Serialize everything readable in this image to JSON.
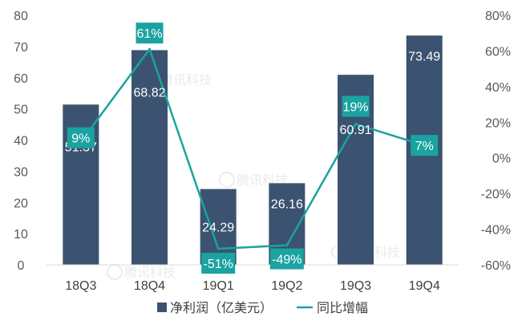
{
  "chart_data": {
    "type": "bar+line",
    "categories": [
      "18Q3",
      "18Q4",
      "19Q1",
      "19Q2",
      "19Q3",
      "19Q4"
    ],
    "series": [
      {
        "name": "净利润（亿美元）",
        "type": "bar",
        "axis": "left",
        "values": [
          51.37,
          68.82,
          24.29,
          26.16,
          60.91,
          73.49
        ],
        "labels": [
          "51.37",
          "68.82",
          "24.29",
          "26.16",
          "60.91",
          "73.49"
        ],
        "color": "#3b5370"
      },
      {
        "name": "同比增幅",
        "type": "line",
        "axis": "right",
        "values": [
          9,
          61,
          -51,
          -49,
          19,
          7
        ],
        "labels": [
          "9%",
          "61%",
          "-51%",
          "-49%",
          "19%",
          "7%"
        ],
        "color": "#1aa3a0"
      }
    ],
    "y_left": {
      "min": 0,
      "max": 80,
      "ticks": [
        "0",
        "10",
        "20",
        "30",
        "40",
        "50",
        "60",
        "70",
        "80"
      ]
    },
    "y_right": {
      "min": -60,
      "max": 80,
      "ticks": [
        "-60%",
        "-40%",
        "-20%",
        "0%",
        "20%",
        "40%",
        "60%",
        "80%"
      ]
    },
    "grid": false,
    "legend": "bottom",
    "watermark": "腾讯科技"
  }
}
